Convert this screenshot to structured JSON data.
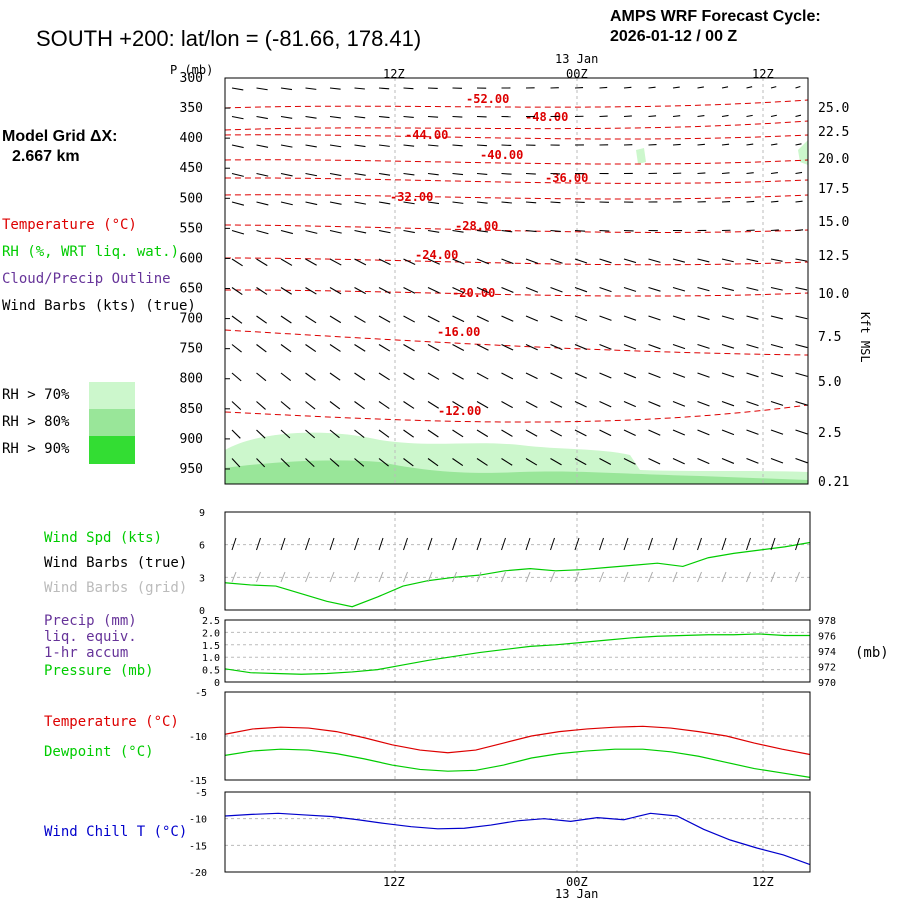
{
  "header": {
    "title": "SOUTH +200:  lat/lon = (-81.66, 178.41)",
    "cycle_line1": "AMPS WRF Forecast Cycle:",
    "cycle_line2": "2026-01-12 / 00  Z"
  },
  "model_grid": {
    "line1": "Model Grid ΔX:",
    "line2": "2.667 km"
  },
  "legend_upper": {
    "temperature": "Temperature (°C)",
    "rh": "RH (%, WRT liq. wat.)",
    "cloud": "Cloud/Precip Outline",
    "barbs": "Wind Barbs (kts) (true)"
  },
  "rh_legend": {
    "rh70": "RH > 70%",
    "rh80": "RH > 80%",
    "rh90": "RH > 90%",
    "colors": {
      "rh70": "#ccf7cc",
      "rh80": "#99e699",
      "rh90": "#33dd33"
    }
  },
  "legend_wind": {
    "spd": "Wind Spd (kts)",
    "barbs_true": "Wind Barbs (true)",
    "barbs_grid": "Wind Barbs (grid)"
  },
  "legend_precip": {
    "l1": "Precip (mm)",
    "l2": "liq. equiv.",
    "l3": "1-hr accum",
    "l4": "Pressure (mb)",
    "unit": "(mb)"
  },
  "legend_temp": {
    "temp": "Temperature (°C)",
    "dew": "Dewpoint (°C)"
  },
  "legend_chill": {
    "chill": "Wind Chill T (°C)"
  },
  "axis_top": {
    "p_label": "P (mb)",
    "date": "13 Jan",
    "ticks": [
      "12Z",
      "00Z",
      "12Z"
    ]
  },
  "axis_bottom": {
    "date": "13 Jan",
    "ticks": [
      "12Z",
      "00Z",
      "12Z"
    ]
  },
  "right_axis_label": "Kft MSL",
  "colors": {
    "temperature": "#dd0000",
    "dewpoint": "#00cc00",
    "windchill": "#0000cc",
    "precip": "#663399",
    "pressure": "#00cc00",
    "grid": "#bbbbbb"
  },
  "chart_data": [
    {
      "type": "line",
      "panel": "time-height cross section",
      "ylabel": "P (mb)",
      "y_ticks": [
        "300",
        "350",
        "400",
        "450",
        "500",
        "550",
        "600",
        "650",
        "700",
        "750",
        "800",
        "850",
        "900",
        "950"
      ],
      "right_ticks": [
        "25.0",
        "22.5",
        "20.0",
        "17.5",
        "15.0",
        "12.5",
        "10.0",
        "7.5",
        "5.0",
        "2.5",
        "0.21"
      ],
      "x_ticks": [
        "12Z",
        "00Z",
        "12Z"
      ],
      "isotherm_labels": [
        "-52.00",
        "-48.00",
        "-44.00",
        "-40.00",
        "-36.00",
        "-32.00",
        "-28.00",
        "-24.00",
        "-20.00",
        "-16.00",
        "-12.00"
      ]
    },
    {
      "type": "line",
      "panel": "wind speed",
      "y_ticks": [
        "0",
        "3",
        "6",
        "9"
      ],
      "ylim": [
        0,
        9
      ],
      "series": [
        {
          "name": "Wind Spd (kts)",
          "values": [
            2.5,
            2.3,
            2.2,
            1.5,
            0.8,
            0.3,
            1.2,
            2.2,
            2.7,
            3.0,
            3.2,
            3.6,
            3.8,
            3.6,
            3.7,
            3.9,
            4.1,
            4.3,
            4.0,
            4.8,
            5.2,
            5.5,
            5.8,
            6.2
          ]
        }
      ]
    },
    {
      "type": "line",
      "panel": "precip and pressure",
      "left_ticks": [
        "0",
        "0.5",
        "1.0",
        "1.5",
        "2.0",
        "2.5"
      ],
      "right_ticks": [
        "970",
        "972",
        "974",
        "976",
        "978"
      ],
      "series": [
        {
          "name": "Pressure (mb)",
          "values": [
            971.7,
            971.2,
            971.1,
            971.0,
            971.1,
            971.3,
            971.6,
            972.2,
            972.8,
            973.3,
            973.8,
            974.2,
            974.6,
            974.8,
            975.1,
            975.4,
            975.7,
            975.9,
            976.0,
            976.1,
            976.1,
            976.2,
            976.0,
            976.0
          ]
        },
        {
          "name": "Precip (mm)",
          "values": [
            0,
            0,
            0,
            0,
            0,
            0,
            0,
            0,
            0,
            0,
            0,
            0,
            0,
            0,
            0,
            0,
            0,
            0,
            0,
            0,
            0,
            0,
            0,
            0
          ]
        }
      ]
    },
    {
      "type": "line",
      "panel": "temperature and dewpoint",
      "y_ticks": [
        "-5",
        "-10",
        "-15"
      ],
      "ylim": [
        -15,
        -5
      ],
      "series": [
        {
          "name": "Temperature (°C)",
          "values": [
            -9.8,
            -9.2,
            -9.0,
            -9.1,
            -9.5,
            -10.2,
            -11.0,
            -11.6,
            -11.9,
            -11.6,
            -10.8,
            -10.0,
            -9.5,
            -9.2,
            -9.0,
            -8.9,
            -9.1,
            -9.5,
            -10.0,
            -10.8,
            -11.5,
            -12.1
          ]
        },
        {
          "name": "Dewpoint (°C)",
          "values": [
            -12.2,
            -11.7,
            -11.5,
            -11.6,
            -12.0,
            -12.6,
            -13.3,
            -13.8,
            -14.0,
            -13.9,
            -13.3,
            -12.5,
            -12.0,
            -11.7,
            -11.5,
            -11.5,
            -11.8,
            -12.3,
            -13.0,
            -13.7,
            -14.2,
            -14.7
          ]
        }
      ]
    },
    {
      "type": "line",
      "panel": "wind chill",
      "y_ticks": [
        "-5",
        "-10",
        "-15",
        "-20"
      ],
      "ylim": [
        -20,
        -5
      ],
      "series": [
        {
          "name": "Wind Chill T (°C)",
          "values": [
            -9.5,
            -9.2,
            -9.0,
            -9.3,
            -9.6,
            -10.2,
            -10.9,
            -11.5,
            -11.9,
            -11.8,
            -11.2,
            -10.4,
            -10.0,
            -10.5,
            -9.8,
            -10.2,
            -9.0,
            -9.5,
            -12.0,
            -14.0,
            -15.5,
            -16.8,
            -18.6
          ]
        }
      ]
    }
  ]
}
